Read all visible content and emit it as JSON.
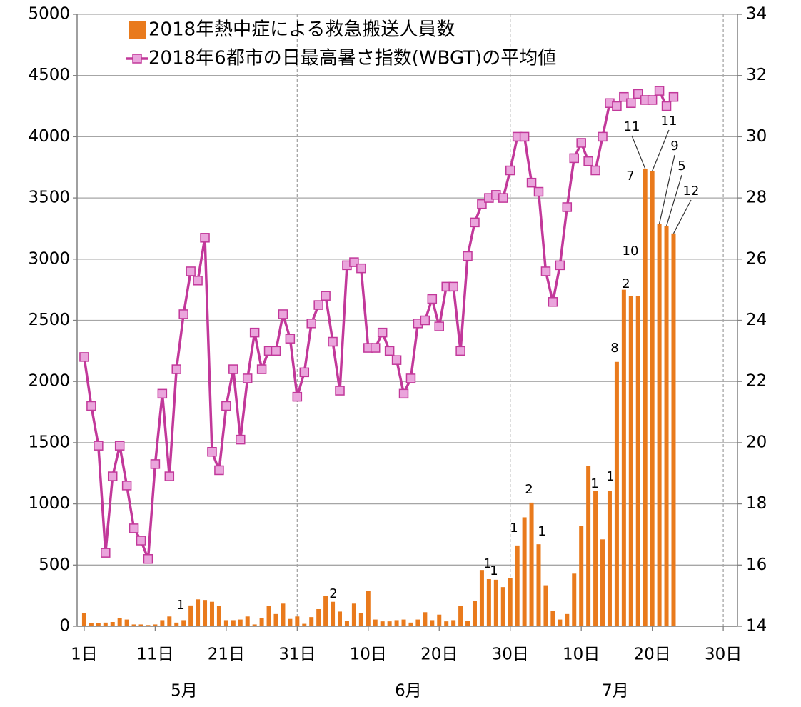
{
  "chart_data": {
    "type": "bar-line",
    "legend": "upper left",
    "grid": true,
    "x": [
      "2018-05-01",
      "2018-05-02",
      "2018-05-03",
      "2018-05-04",
      "2018-05-05",
      "2018-05-06",
      "2018-05-07",
      "2018-05-08",
      "2018-05-09",
      "2018-05-10",
      "2018-05-11",
      "2018-05-12",
      "2018-05-13",
      "2018-05-14",
      "2018-05-15",
      "2018-05-16",
      "2018-05-17",
      "2018-05-18",
      "2018-05-19",
      "2018-05-20",
      "2018-05-21",
      "2018-05-22",
      "2018-05-23",
      "2018-05-24",
      "2018-05-25",
      "2018-05-26",
      "2018-05-27",
      "2018-05-28",
      "2018-05-29",
      "2018-05-30",
      "2018-05-31",
      "2018-06-01",
      "2018-06-02",
      "2018-06-03",
      "2018-06-04",
      "2018-06-05",
      "2018-06-06",
      "2018-06-07",
      "2018-06-08",
      "2018-06-09",
      "2018-06-10",
      "2018-06-11",
      "2018-06-12",
      "2018-06-13",
      "2018-06-14",
      "2018-06-15",
      "2018-06-16",
      "2018-06-17",
      "2018-06-18",
      "2018-06-19",
      "2018-06-20",
      "2018-06-21",
      "2018-06-22",
      "2018-06-23",
      "2018-06-24",
      "2018-06-25",
      "2018-06-26",
      "2018-06-27",
      "2018-06-28",
      "2018-06-29",
      "2018-06-30",
      "2018-07-01",
      "2018-07-02",
      "2018-07-03",
      "2018-07-04",
      "2018-07-05",
      "2018-07-06",
      "2018-07-07",
      "2018-07-08",
      "2018-07-09",
      "2018-07-10",
      "2018-07-11",
      "2018-07-12",
      "2018-07-13",
      "2018-07-14",
      "2018-07-15",
      "2018-07-16",
      "2018-07-17",
      "2018-07-18",
      "2018-07-19",
      "2018-07-20",
      "2018-07-21",
      "2018-07-22",
      "2018-07-23"
    ],
    "series": [
      {
        "name": "2018年熱中症による救急搬送人員数",
        "color": "#e97a1c",
        "type": "bar",
        "values": [
          105,
          25,
          25,
          30,
          35,
          65,
          55,
          15,
          15,
          10,
          15,
          50,
          80,
          30,
          50,
          170,
          220,
          215,
          200,
          165,
          50,
          50,
          55,
          80,
          15,
          65,
          165,
          100,
          185,
          60,
          80,
          20,
          75,
          140,
          250,
          200,
          120,
          45,
          185,
          105,
          290,
          55,
          40,
          40,
          50,
          55,
          30,
          55,
          115,
          50,
          95,
          40,
          50,
          165,
          45,
          205,
          460,
          385,
          380,
          320,
          395,
          660,
          890,
          1010,
          670,
          335,
          125,
          55,
          100,
          430,
          820,
          1310,
          1105,
          710,
          1105,
          2160,
          2750,
          2700,
          2700,
          3740,
          3720,
          3290,
          3270,
          3210
        ]
      },
      {
        "name": "2018年6都市の日最高暑さ指数(WBGT)の平均値",
        "color": "#c2389a",
        "marker_color": "#eaa5dc",
        "type": "line",
        "axis": "y2",
        "values": [
          22.8,
          21.2,
          19.9,
          16.4,
          18.9,
          19.9,
          18.6,
          17.2,
          16.8,
          16.2,
          19.3,
          21.6,
          18.9,
          22.4,
          24.2,
          25.6,
          25.3,
          26.7,
          19.7,
          19.1,
          21.2,
          22.4,
          20.1,
          22.1,
          23.6,
          22.4,
          23.0,
          23.0,
          24.2,
          23.4,
          21.5,
          22.3,
          23.9,
          24.5,
          24.8,
          23.3,
          21.7,
          25.8,
          25.9,
          25.7,
          23.1,
          23.1,
          23.6,
          23.0,
          22.7,
          21.6,
          22.1,
          23.9,
          24.0,
          24.7,
          23.8,
          25.1,
          25.1,
          23.0,
          26.1,
          27.2,
          27.8,
          28.0,
          28.1,
          28.0,
          28.9,
          30.0,
          30.0,
          28.5,
          28.2,
          25.6,
          24.6,
          25.8,
          27.7,
          29.3,
          29.8,
          29.2,
          28.9,
          30.0,
          31.1,
          31.0,
          31.3,
          31.1,
          31.4,
          31.2,
          31.2,
          31.5,
          31.0,
          31.3
        ]
      }
    ],
    "xlim": [
      "2018-04-30",
      "2018-08-01"
    ],
    "xticks": [
      {
        "value": "2018-05-01",
        "label": "1日"
      },
      {
        "value": "2018-05-11",
        "label": "11日"
      },
      {
        "value": "2018-05-21",
        "label": "21日"
      },
      {
        "value": "2018-05-31",
        "label": "31日"
      },
      {
        "value": "2018-06-10",
        "label": "10日"
      },
      {
        "value": "2018-06-20",
        "label": "20日"
      },
      {
        "value": "2018-06-30",
        "label": "30日"
      },
      {
        "value": "2018-07-10",
        "label": "10日"
      },
      {
        "value": "2018-07-20",
        "label": "20日"
      },
      {
        "value": "2018-07-30",
        "label": "30日"
      }
    ],
    "months": [
      "5月",
      "6月",
      "7月"
    ],
    "ylim": [
      0,
      5000
    ],
    "yticks": [
      0,
      500,
      1000,
      1500,
      2000,
      2500,
      3000,
      3500,
      4000,
      4500,
      5000
    ],
    "y2lim": [
      14,
      34
    ],
    "y2ticks": [
      14,
      16,
      18,
      20,
      22,
      24,
      26,
      28,
      30,
      32,
      34
    ],
    "annotations": [
      {
        "text": "1",
        "x": "2018-05-16"
      },
      {
        "text": "2",
        "x": "2018-06-05"
      },
      {
        "text": "1",
        "x": "2018-06-26"
      },
      {
        "text": "1",
        "x": "2018-06-27"
      },
      {
        "text": "1",
        "x": "2018-07-01"
      },
      {
        "text": "2",
        "x": "2018-07-03"
      },
      {
        "text": "1",
        "x": "2018-07-04"
      },
      {
        "text": "1",
        "x": "2018-07-12"
      },
      {
        "text": "1",
        "x": "2018-07-14"
      },
      {
        "text": "8",
        "x": "2018-07-15"
      },
      {
        "text": "2",
        "x": "2018-07-16"
      },
      {
        "text": "10",
        "x": "2018-07-17"
      },
      {
        "text": "7",
        "x": "2018-07-19"
      },
      {
        "text": "11",
        "x": "2018-07-19"
      },
      {
        "text": "11",
        "x": "2018-07-20"
      },
      {
        "text": "9",
        "x": "2018-07-21"
      },
      {
        "text": "5",
        "x": "2018-07-22"
      },
      {
        "text": "12",
        "x": "2018-07-23"
      }
    ]
  }
}
